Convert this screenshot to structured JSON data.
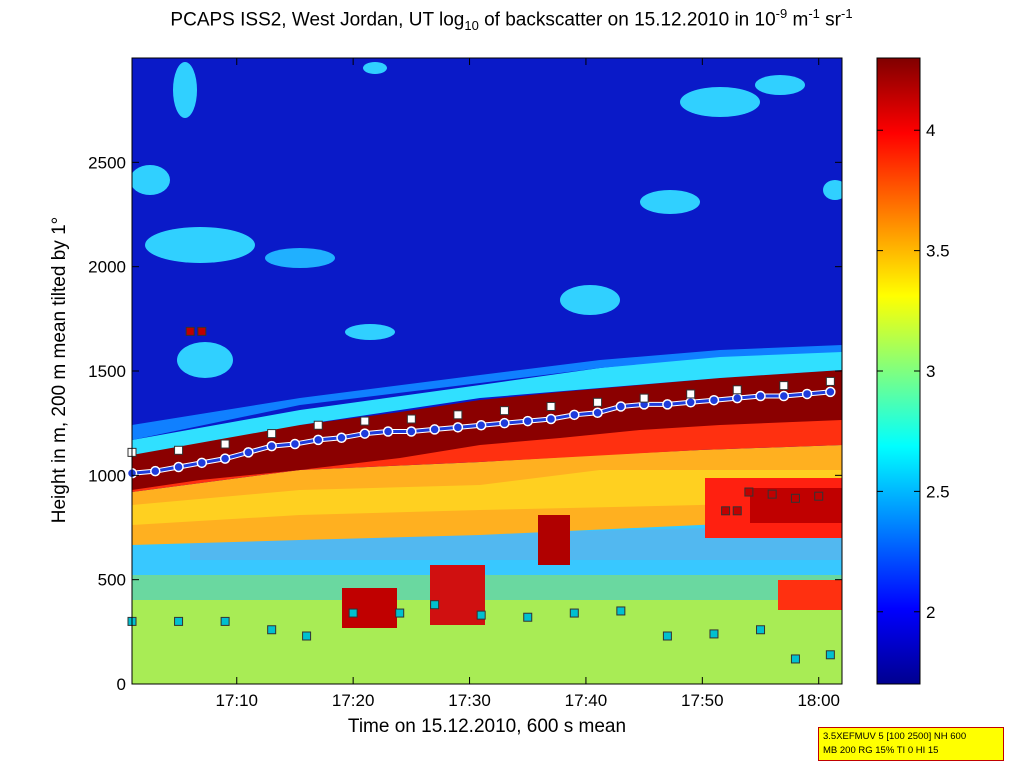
{
  "title": {
    "pre": "PCAPS ISS2, West Jordan, UT log",
    "sub1": "10",
    "mid": " of backscatter on 15.12.2010 in 10",
    "sup1": "-9",
    "mid2": " m",
    "sup2": "-1",
    "mid3": " sr",
    "sup3": "-1"
  },
  "info_box": {
    "line1": "3.5XEFMUV 5 [100 2500] NH 600",
    "line2": "MB 200 RG 15% TI 0 HI 15"
  },
  "chart_data": {
    "type": "heatmap",
    "xlabel": "Time on 15.12.2010, 600 s mean",
    "ylabel": "Height in m, 200 m mean tilted by 1°",
    "x_range": [
      "17:01",
      "18:02"
    ],
    "x_ticks": [
      "17:10",
      "17:20",
      "17:30",
      "17:40",
      "17:50",
      "18:00"
    ],
    "y_range": [
      0,
      3000
    ],
    "y_ticks": [
      0,
      500,
      1000,
      1500,
      2000,
      2500
    ],
    "colorbar": {
      "range": [
        1.7,
        4.3
      ],
      "ticks": [
        2,
        2.5,
        3,
        3.5,
        4
      ],
      "colormap": [
        "#00008f",
        "#0000ff",
        "#00ffff",
        "#ffff00",
        "#ff0000",
        "#800000"
      ]
    },
    "series": [
      {
        "marker": "circle",
        "color": "#1e3cdc",
        "points": [
          [
            "17:01",
            1010
          ],
          [
            "17:03",
            1020
          ],
          [
            "17:05",
            1040
          ],
          [
            "17:07",
            1060
          ],
          [
            "17:09",
            1080
          ],
          [
            "17:11",
            1110
          ],
          [
            "17:13",
            1140
          ],
          [
            "17:15",
            1150
          ],
          [
            "17:17",
            1170
          ],
          [
            "17:19",
            1180
          ],
          [
            "17:21",
            1200
          ],
          [
            "17:23",
            1210
          ],
          [
            "17:25",
            1210
          ],
          [
            "17:27",
            1220
          ],
          [
            "17:29",
            1230
          ],
          [
            "17:31",
            1240
          ],
          [
            "17:33",
            1250
          ],
          [
            "17:35",
            1260
          ],
          [
            "17:37",
            1270
          ],
          [
            "17:39",
            1290
          ],
          [
            "17:41",
            1300
          ],
          [
            "17:43",
            1330
          ],
          [
            "17:45",
            1340
          ],
          [
            "17:47",
            1340
          ],
          [
            "17:49",
            1350
          ],
          [
            "17:51",
            1360
          ],
          [
            "17:53",
            1370
          ],
          [
            "17:55",
            1380
          ],
          [
            "17:57",
            1380
          ],
          [
            "17:59",
            1390
          ],
          [
            "18:01",
            1400
          ]
        ]
      },
      {
        "marker": "square",
        "color": "#ffffff",
        "points": [
          [
            "17:01",
            1110
          ],
          [
            "17:05",
            1120
          ],
          [
            "17:09",
            1150
          ],
          [
            "17:13",
            1200
          ],
          [
            "17:17",
            1240
          ],
          [
            "17:21",
            1260
          ],
          [
            "17:25",
            1270
          ],
          [
            "17:29",
            1290
          ],
          [
            "17:33",
            1310
          ],
          [
            "17:37",
            1330
          ],
          [
            "17:41",
            1350
          ],
          [
            "17:45",
            1370
          ],
          [
            "17:49",
            1390
          ],
          [
            "17:53",
            1410
          ],
          [
            "17:57",
            1430
          ],
          [
            "18:01",
            1450
          ]
        ]
      },
      {
        "marker": "square",
        "color": "#00c0d0",
        "points": [
          [
            "17:01",
            300
          ],
          [
            "17:05",
            300
          ],
          [
            "17:09",
            300
          ],
          [
            "17:13",
            260
          ],
          [
            "17:16",
            230
          ],
          [
            "17:20",
            340
          ],
          [
            "17:24",
            340
          ],
          [
            "17:27",
            380
          ],
          [
            "17:31",
            330
          ],
          [
            "17:35",
            320
          ],
          [
            "17:39",
            340
          ],
          [
            "17:43",
            350
          ],
          [
            "17:47",
            230
          ],
          [
            "17:51",
            240
          ],
          [
            "17:55",
            260
          ],
          [
            "17:58",
            120
          ],
          [
            "18:01",
            140
          ]
        ]
      },
      {
        "marker": "square",
        "color": "#c00000",
        "points": [
          [
            "17:06",
            1690
          ],
          [
            "17:07",
            1690
          ],
          [
            "17:52",
            830
          ],
          [
            "17:53",
            830
          ],
          [
            "17:54",
            920
          ],
          [
            "17:56",
            910
          ],
          [
            "17:58",
            890
          ],
          [
            "18:00",
            900
          ]
        ]
      }
    ]
  }
}
